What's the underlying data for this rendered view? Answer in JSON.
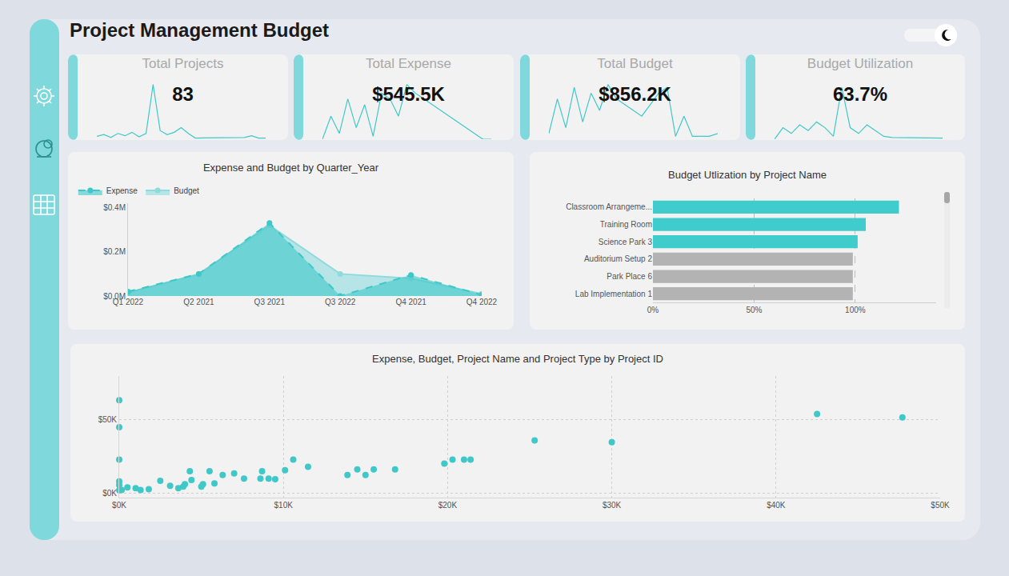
{
  "header": {
    "title": "Project Management Budget"
  },
  "cards": [
    {
      "title": "Total Projects",
      "value": "83",
      "sparkline": {
        "type": "line",
        "color": "#40c8c8",
        "tick_labels": false,
        "ylim": [
          0,
          100
        ],
        "values": [
          5,
          8,
          3,
          10,
          6,
          12,
          4,
          10,
          95,
          15,
          8,
          12,
          20,
          10,
          2,
          2,
          2,
          2,
          2,
          2,
          2,
          3,
          6,
          2,
          2
        ]
      }
    },
    {
      "title": "Total Expense",
      "value": "$545.5K",
      "sparkline": {
        "type": "line",
        "color": "#40c8c8",
        "tick_labels": false,
        "ylim": [
          0,
          100
        ],
        "values": [
          0,
          40,
          10,
          70,
          20,
          60,
          5,
          80,
          70,
          40,
          95,
          80,
          70,
          60,
          50,
          40,
          30,
          20,
          10,
          0,
          0
        ]
      }
    },
    {
      "title": "Total Budget",
      "value": "$856.2K",
      "sparkline": {
        "type": "line",
        "color": "#40c8c8",
        "tick_labels": false,
        "ylim": [
          0,
          100
        ],
        "values": [
          10,
          70,
          20,
          90,
          30,
          80,
          50,
          95,
          70,
          60,
          50,
          40,
          60,
          80,
          90,
          5,
          40,
          5,
          5,
          5,
          10
        ]
      }
    },
    {
      "title": "Budget Utilization",
      "value": "63.7%",
      "sparkline": {
        "type": "line",
        "color": "#40c8c8",
        "tick_labels": false,
        "ylim": [
          0,
          100
        ],
        "values": [
          0,
          20,
          10,
          25,
          15,
          30,
          20,
          5,
          90,
          20,
          10,
          25,
          15,
          5,
          3,
          3,
          3,
          3,
          3,
          3,
          2
        ]
      }
    }
  ],
  "chart_data": [
    {
      "type": "area",
      "title": "Expense and Budget by Quarter_Year",
      "categories": [
        "Q1 2022",
        "Q2 2021",
        "Q3 2021",
        "Q3 2022",
        "Q4 2021",
        "Q4 2022"
      ],
      "series": [
        {
          "name": "Expense",
          "color": "#3cc8c8",
          "line_style": "dashed",
          "marker": "circle",
          "values": [
            20000,
            100000,
            330000,
            0,
            95000,
            5000
          ]
        },
        {
          "name": "Budget",
          "color": "#8fdadd",
          "line_style": "solid",
          "marker": "circle",
          "values": [
            15000,
            100000,
            320000,
            100000,
            80000,
            10000
          ]
        }
      ],
      "ylim": [
        0,
        420000
      ],
      "yticks": [
        {
          "value": 0,
          "label": "$0.0M"
        },
        {
          "value": 200000,
          "label": "$0.2M"
        },
        {
          "value": 400000,
          "label": "$0.4M"
        }
      ],
      "grid": false,
      "legend": "top left"
    },
    {
      "type": "bar",
      "title": "Budget Utlization by Project Name",
      "orientation": "horizontal",
      "categories": [
        "Classroom Arrangeme...",
        "Training Room",
        "Science Park 3",
        "Auditorium Setup 2",
        "Park Place 6",
        "Lab Implementation 1"
      ],
      "values": [
        121.6,
        105.2,
        101.2,
        98.8,
        98.8,
        98.8
      ],
      "colors": [
        "#40cccc",
        "#40cccc",
        "#40cccc",
        "#b3b3b3",
        "#b3b3b3",
        "#b3b3b3"
      ],
      "xlim": [
        0,
        140
      ],
      "xticks": [
        {
          "value": 0,
          "label": "0%"
        },
        {
          "value": 50,
          "label": "50%"
        },
        {
          "value": 100,
          "label": "100%"
        }
      ],
      "grid": true
    },
    {
      "type": "scatter",
      "title": "Expense, Budget, Project Name and Project Type by Project ID",
      "color": "#40c8c8",
      "marker": "circle",
      "x": [
        0,
        0,
        0,
        0,
        0,
        0,
        150,
        500,
        1000,
        1300,
        1800,
        2500,
        3100,
        3600,
        3900,
        4000,
        4300,
        4400,
        5000,
        5100,
        5500,
        5800,
        6300,
        7000,
        7600,
        8600,
        8700,
        9100,
        9500,
        10100,
        10600,
        11500,
        13900,
        14500,
        15000,
        15500,
        16800,
        19800,
        20300,
        21000,
        21400,
        25300,
        30000,
        42500,
        47700
      ],
      "values": [
        63500,
        45000,
        23000,
        8000,
        5600,
        2000,
        2200,
        4000,
        3400,
        2200,
        2800,
        8400,
        5000,
        3400,
        4500,
        6200,
        15000,
        9000,
        4500,
        6200,
        15000,
        6700,
        12400,
        13500,
        10000,
        10000,
        15000,
        10000,
        9500,
        15700,
        23000,
        18000,
        12400,
        16300,
        12400,
        16300,
        16300,
        20200,
        23000,
        23000,
        23000,
        36000,
        34800,
        54000,
        51700
      ],
      "xlim": [
        0,
        50000
      ],
      "xticks": [
        {
          "value": 0,
          "label": "$0K"
        },
        {
          "value": 10000,
          "label": "$10K"
        },
        {
          "value": 20000,
          "label": "$20K"
        },
        {
          "value": 30000,
          "label": "$30K"
        },
        {
          "value": 40000,
          "label": "$40K"
        },
        {
          "value": 50000,
          "label": "$50K"
        }
      ],
      "ylim": [
        -3000,
        80000
      ],
      "yticks": [
        {
          "value": 0,
          "label": "$0K"
        },
        {
          "value": 50000,
          "label": "$50K"
        }
      ],
      "grid": true
    }
  ]
}
